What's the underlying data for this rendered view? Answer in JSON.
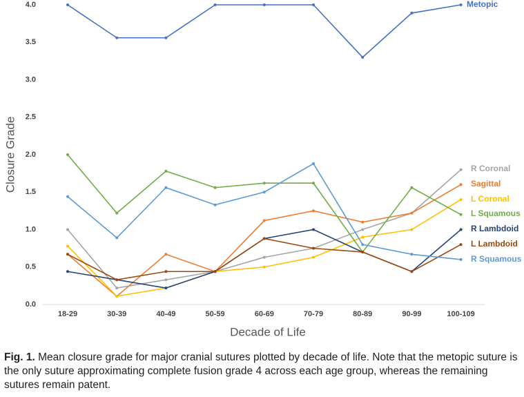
{
  "chart_data": {
    "type": "line",
    "x_label": "Decade of Life",
    "y_label": "Closure Grade",
    "categories": [
      "18-29",
      "30-39",
      "40-49",
      "50-59",
      "60-69",
      "70-79",
      "80-89",
      "90-99",
      "100-109"
    ],
    "ylim": [
      0,
      4
    ],
    "yticks": [
      {
        "value": 0,
        "label": "0.0"
      },
      0.5,
      {
        "value": 1,
        "label": "1.0"
      },
      1.5,
      {
        "value": 2,
        "label": "2.0"
      },
      2.5,
      {
        "value": 3,
        "label": "3.0"
      },
      3.5,
      {
        "value": 4,
        "label": "4.0"
      }
    ],
    "grid": false,
    "series": [
      {
        "name": "Metopic",
        "color": "#4472c4",
        "values": [
          4.0,
          3.56,
          3.56,
          4.0,
          4.0,
          4.0,
          3.3,
          3.89,
          4.0
        ]
      },
      {
        "name": "R Coronal",
        "color": "#a5a5a5",
        "values": [
          1.0,
          0.22,
          0.33,
          0.44,
          0.63,
          0.75,
          1.0,
          1.22,
          1.8
        ]
      },
      {
        "name": "Sagittal",
        "color": "#ed7d31",
        "values": [
          0.67,
          0.11,
          0.67,
          0.44,
          1.12,
          1.25,
          1.1,
          1.22,
          1.6
        ]
      },
      {
        "name": "L Coronal",
        "color": "#ffc000",
        "values": [
          0.78,
          0.11,
          0.22,
          0.44,
          0.5,
          0.63,
          0.9,
          1.0,
          1.4
        ]
      },
      {
        "name": "L Squamous",
        "color": "#70ad47",
        "values": [
          2.0,
          1.22,
          1.78,
          1.56,
          1.62,
          1.62,
          0.7,
          1.56,
          1.2
        ]
      },
      {
        "name": "R Lambdoid",
        "color": "#264478",
        "values": [
          0.44,
          0.33,
          0.22,
          0.44,
          0.88,
          1.0,
          0.7,
          0.44,
          1.0
        ]
      },
      {
        "name": "L Lambdoid",
        "color": "#9e480e",
        "values": [
          0.67,
          0.33,
          0.44,
          0.44,
          0.88,
          0.75,
          0.7,
          0.44,
          0.8
        ]
      },
      {
        "name": "R Squamous",
        "color": "#5b9bd5",
        "values": [
          1.44,
          0.89,
          1.56,
          1.33,
          1.5,
          1.88,
          0.8,
          0.67,
          0.6
        ]
      }
    ]
  },
  "caption": {
    "label": "Fig. 1.",
    "text": "Mean closure grade for major cranial sutures plotted by decade of life. Note that the metopic suture is the only suture approximating complete fusion grade 4 across each age group, whereas the remaining sutures remain patent."
  }
}
